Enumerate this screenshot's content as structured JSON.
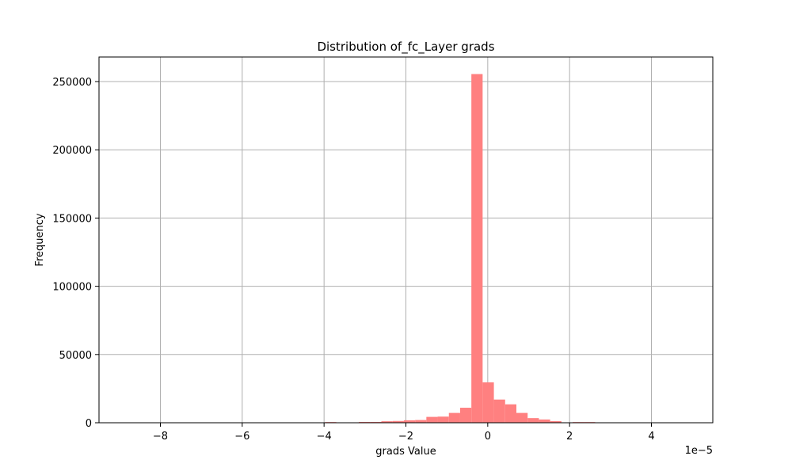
{
  "chart_data": {
    "type": "bar",
    "title": "Distribution of_fc_Layer grads",
    "xlabel": "grads Value",
    "ylabel": "Frequency",
    "x_offset_label": "1e−5",
    "xlim": [
      -9.5,
      5.5
    ],
    "ylim": [
      0,
      268000
    ],
    "xticks": [
      -8,
      -6,
      -4,
      -2,
      0,
      2,
      4
    ],
    "xtick_labels": [
      "−8",
      "−6",
      "−4",
      "−2",
      "0",
      "2",
      "4"
    ],
    "yticks": [
      0,
      50000,
      100000,
      150000,
      200000,
      250000
    ],
    "ytick_labels": [
      "0",
      "50000",
      "100000",
      "150000",
      "200000",
      "250000"
    ],
    "grid": true,
    "color": "#ff8080",
    "bin_start": -9.2,
    "bin_width": 0.275,
    "values": [
      0,
      0,
      0,
      0,
      0,
      0,
      0,
      0,
      0,
      0,
      0,
      0,
      0,
      0,
      0,
      0,
      100,
      300,
      200,
      500,
      200,
      300,
      600,
      600,
      1100,
      1300,
      1800,
      2000,
      4300,
      4500,
      7200,
      11000,
      255500,
      29600,
      17000,
      13500,
      7200,
      3400,
      2400,
      1200,
      300,
      500,
      500,
      200,
      100,
      100,
      100,
      100,
      0,
      100
    ]
  }
}
